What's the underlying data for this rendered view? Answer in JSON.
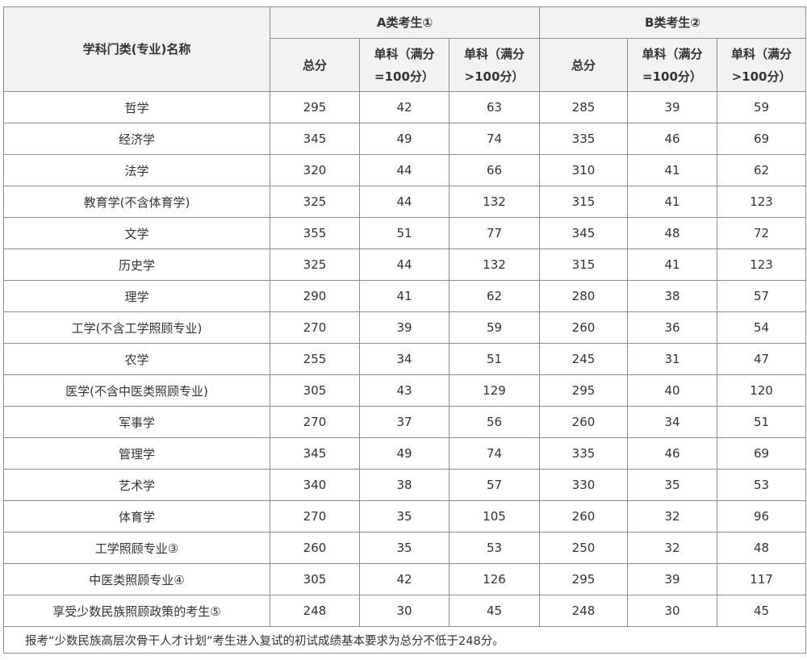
{
  "header": {
    "subject_col": "学科门类(专业)名称",
    "group_a": "A类考生①",
    "group_b": "B类考生②",
    "total": "总分",
    "single_low_line1": "单科（满分",
    "single_low_line2": "=100分）",
    "single_high_line1": "单科（满分",
    "single_high_line2": ">100分）"
  },
  "rows": [
    {
      "name": "哲学",
      "a_total": "295",
      "a_low": "42",
      "a_high": "63",
      "b_total": "285",
      "b_low": "39",
      "b_high": "59"
    },
    {
      "name": "经济学",
      "a_total": "345",
      "a_low": "49",
      "a_high": "74",
      "b_total": "335",
      "b_low": "46",
      "b_high": "69"
    },
    {
      "name": "法学",
      "a_total": "320",
      "a_low": "44",
      "a_high": "66",
      "b_total": "310",
      "b_low": "41",
      "b_high": "62"
    },
    {
      "name": "教育学(不含体育学)",
      "a_total": "325",
      "a_low": "44",
      "a_high": "132",
      "b_total": "315",
      "b_low": "41",
      "b_high": "123"
    },
    {
      "name": "文学",
      "a_total": "355",
      "a_low": "51",
      "a_high": "77",
      "b_total": "345",
      "b_low": "48",
      "b_high": "72"
    },
    {
      "name": "历史学",
      "a_total": "325",
      "a_low": "44",
      "a_high": "132",
      "b_total": "315",
      "b_low": "41",
      "b_high": "123"
    },
    {
      "name": "理学",
      "a_total": "290",
      "a_low": "41",
      "a_high": "62",
      "b_total": "280",
      "b_low": "38",
      "b_high": "57"
    },
    {
      "name": "工学(不含工学照顾专业)",
      "a_total": "270",
      "a_low": "39",
      "a_high": "59",
      "b_total": "260",
      "b_low": "36",
      "b_high": "54"
    },
    {
      "name": "农学",
      "a_total": "255",
      "a_low": "34",
      "a_high": "51",
      "b_total": "245",
      "b_low": "31",
      "b_high": "47"
    },
    {
      "name": "医学(不含中医类照顾专业)",
      "a_total": "305",
      "a_low": "43",
      "a_high": "129",
      "b_total": "295",
      "b_low": "40",
      "b_high": "120"
    },
    {
      "name": "军事学",
      "a_total": "270",
      "a_low": "37",
      "a_high": "56",
      "b_total": "260",
      "b_low": "34",
      "b_high": "51"
    },
    {
      "name": "管理学",
      "a_total": "345",
      "a_low": "49",
      "a_high": "74",
      "b_total": "335",
      "b_low": "46",
      "b_high": "69"
    },
    {
      "name": "艺术学",
      "a_total": "340",
      "a_low": "38",
      "a_high": "57",
      "b_total": "330",
      "b_low": "35",
      "b_high": "53"
    },
    {
      "name": "体育学",
      "a_total": "270",
      "a_low": "35",
      "a_high": "105",
      "b_total": "260",
      "b_low": "32",
      "b_high": "96"
    },
    {
      "name": "工学照顾专业③",
      "a_total": "260",
      "a_low": "35",
      "a_high": "53",
      "b_total": "250",
      "b_low": "32",
      "b_high": "48"
    },
    {
      "name": "中医类照顾专业④",
      "a_total": "305",
      "a_low": "42",
      "a_high": "126",
      "b_total": "295",
      "b_low": "39",
      "b_high": "117"
    },
    {
      "name": "享受少数民族照顾政策的考生⑤",
      "a_total": "248",
      "a_low": "30",
      "a_high": "45",
      "b_total": "248",
      "b_low": "30",
      "b_high": "45"
    }
  ],
  "note": "报考“少数民族高层次骨干人才计划”考生进入复试的初试成绩基本要求为总分不低于248分。"
}
